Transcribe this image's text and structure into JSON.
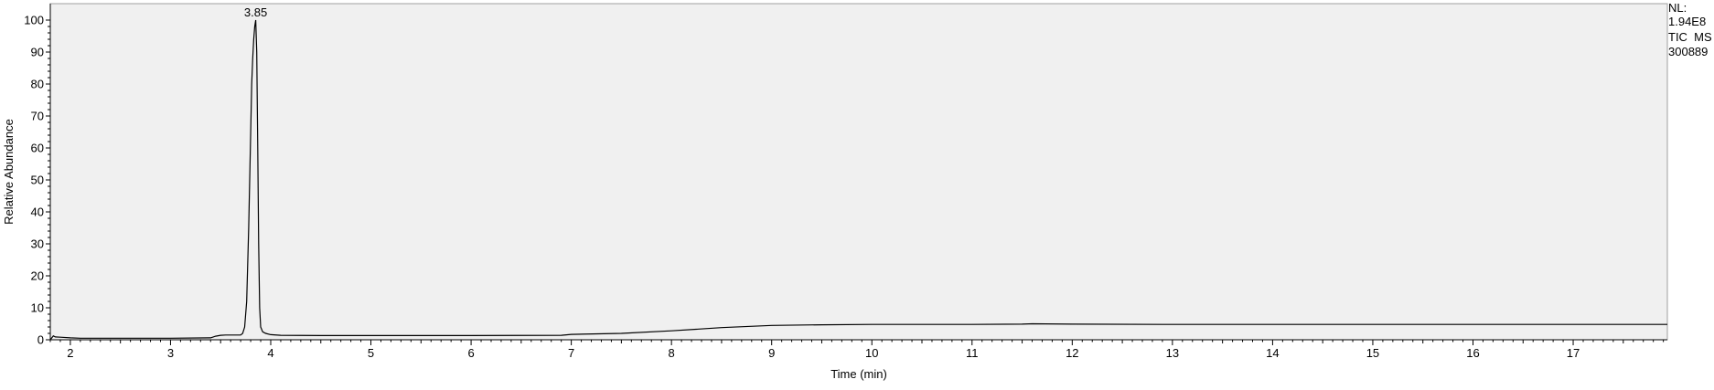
{
  "chart_data": {
    "type": "line",
    "title": "",
    "xlabel": "Time (min)",
    "ylabel": "Relative Abundance",
    "xlim": [
      1.8,
      17.94
    ],
    "ylim": [
      0,
      100
    ],
    "x_ticks": [
      2,
      3,
      4,
      5,
      6,
      7,
      8,
      9,
      10,
      11,
      12,
      13,
      14,
      15,
      16,
      17
    ],
    "y_ticks": [
      0,
      10,
      20,
      30,
      40,
      50,
      60,
      70,
      80,
      90,
      100
    ],
    "peak_annotation": {
      "label": "3.85",
      "x": 3.85,
      "y": 100
    },
    "legend": {
      "nl_label": "NL:",
      "nl_value": "1.94E8",
      "trace": "TIC  MS",
      "sample": "300889"
    },
    "series": [
      {
        "name": "TIC MS 300889",
        "x": [
          1.8,
          1.83,
          1.85,
          1.9,
          2.0,
          2.1,
          2.5,
          3.0,
          3.4,
          3.45,
          3.5,
          3.55,
          3.6,
          3.65,
          3.7,
          3.72,
          3.74,
          3.76,
          3.78,
          3.8,
          3.81,
          3.82,
          3.83,
          3.84,
          3.85,
          3.86,
          3.87,
          3.88,
          3.89,
          3.9,
          3.92,
          3.95,
          4.0,
          4.1,
          4.5,
          5.0,
          6.0,
          6.9,
          7.0,
          7.5,
          8.0,
          8.5,
          9.0,
          9.5,
          10.0,
          11.0,
          11.5,
          11.6,
          12.0,
          13.0,
          14.0,
          15.0,
          16.0,
          17.0,
          17.94
        ],
        "values": [
          0.0,
          1.2,
          0.9,
          0.8,
          0.6,
          0.5,
          0.5,
          0.5,
          0.6,
          1.1,
          1.4,
          1.5,
          1.5,
          1.5,
          1.5,
          2.0,
          4.0,
          12.0,
          35.0,
          65.0,
          80.0,
          88.0,
          94.0,
          98.0,
          100.0,
          90.0,
          60.0,
          30.0,
          10.0,
          4.0,
          2.5,
          2.0,
          1.6,
          1.4,
          1.3,
          1.3,
          1.3,
          1.4,
          1.7,
          2.0,
          2.8,
          3.8,
          4.5,
          4.7,
          4.8,
          4.8,
          4.9,
          5.0,
          4.9,
          4.8,
          4.8,
          4.8,
          4.8,
          4.8,
          4.8
        ]
      }
    ]
  }
}
